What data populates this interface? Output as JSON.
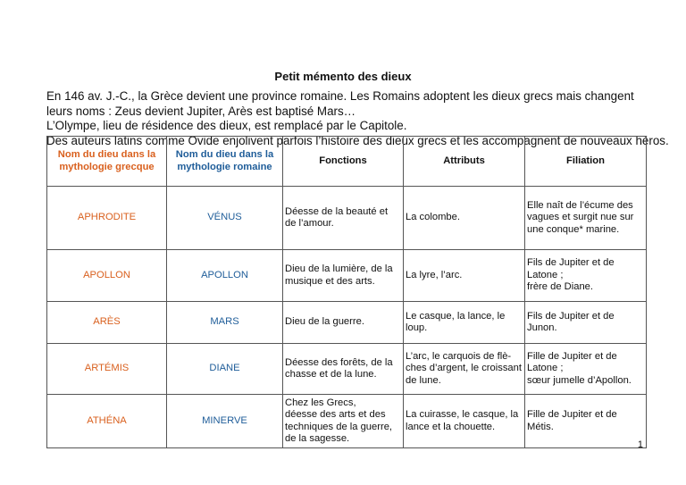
{
  "title": "Petit mémento des dieux",
  "intro": [
    "En 146 av. J.-C., la Grèce devient une province romaine. Les Romains adoptent les dieux grecs mais changent",
    "leurs noms : Zeus devient Jupiter, Arès est baptisé Mars…",
    "L’Olympe, lieu de résidence des dieux, est remplacé par le Capitole.",
    "Des auteurs latins comme Ovide enjolivent parfois l’histoire des dieux grecs et les accompagnent de nouveaux héros."
  ],
  "table": {
    "headers": [
      "Nom du dieu dans la mythologie grecque",
      "Nom du dieu dans la mythologie romaine",
      "Fonctions",
      "Attributs",
      "Filiation"
    ],
    "rows": [
      [
        "APHRODITE",
        "VÉNUS",
        "Déesse de la beauté et de l’amour.",
        "La colombe.",
        "Elle naît de l’écume des vagues et surgit nue sur une conque* marine."
      ],
      [
        "APOLLON",
        "APOLLON",
        "Dieu de la lumière, de la musique et des arts.",
        "La lyre, l’arc.",
        "Fils de Jupiter et de Latone ;\nfrère de Diane."
      ],
      [
        "ARÈS",
        "MARS",
        "Dieu de la guerre.",
        "Le casque, la lance, le loup.",
        "Fils de Jupiter et de Junon."
      ],
      [
        "ARTÉMIS",
        "DIANE",
        "Déesse des forêts, de la chasse et de la lune.",
        "L’arc, le carquois de flè-ches d’argent, le croissant de lune.",
        "Fille de Jupiter et de Latone ;\nsœur jumelle d’Apollon."
      ],
      [
        "ATHÉNA",
        "MINERVE",
        "Chez les Grecs,\ndéesse des arts et des techniques de la guerre, de la sagesse.",
        "La cuirasse, le casque, la lance et la chouette.",
        "Fille de Jupiter et de Métis."
      ]
    ]
  },
  "page_number": "1",
  "colors": {
    "greek": "#d9601e",
    "roman": "#1f5d99"
  }
}
